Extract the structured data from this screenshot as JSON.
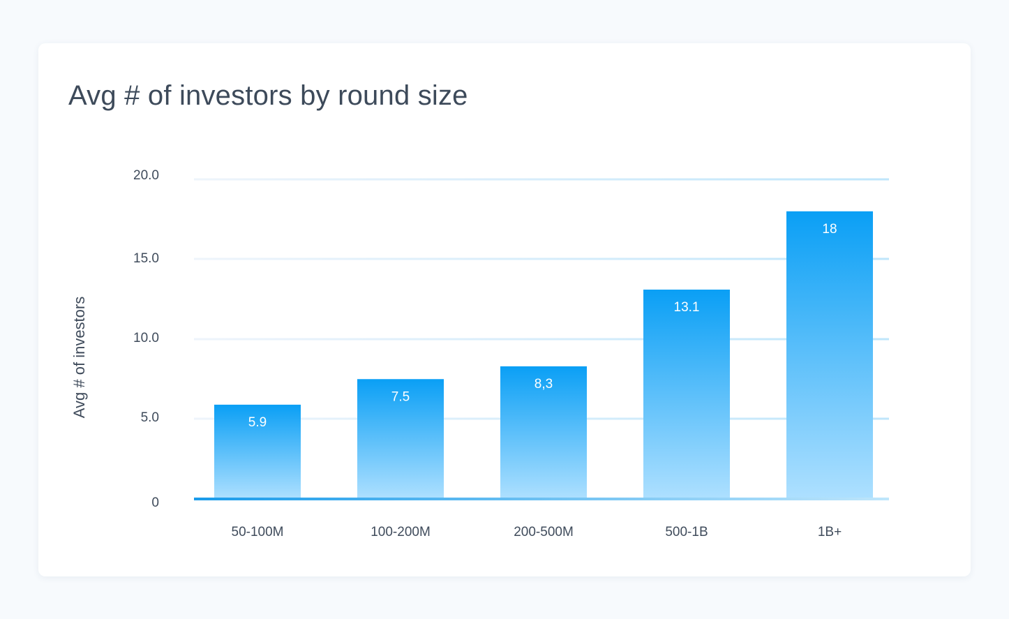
{
  "chart_data": {
    "type": "bar",
    "title": "Avg # of investors by round size",
    "xlabel": "",
    "ylabel": "Avg # of investors",
    "categories": [
      "50-100M",
      "100-200M",
      "200-500M",
      "500-1B",
      "1B+"
    ],
    "values": [
      5.9,
      7.5,
      8.3,
      13.1,
      18
    ],
    "value_labels": [
      "5.9",
      "7.5",
      "8,3",
      "13.1",
      "18"
    ],
    "yticks": [
      "0",
      "5.0",
      "10.0",
      "15.0",
      "20.0"
    ],
    "ylim": [
      0,
      20
    ],
    "grid": true,
    "legend": "none",
    "colors": {
      "bar_top": "#0a9ff5",
      "bar_bottom": "#aee0ff",
      "grid_light": "#eef4fb",
      "grid_strong": "#bfe6fb",
      "baseline": "#1a9bea",
      "text": "#3f4b5b"
    }
  }
}
